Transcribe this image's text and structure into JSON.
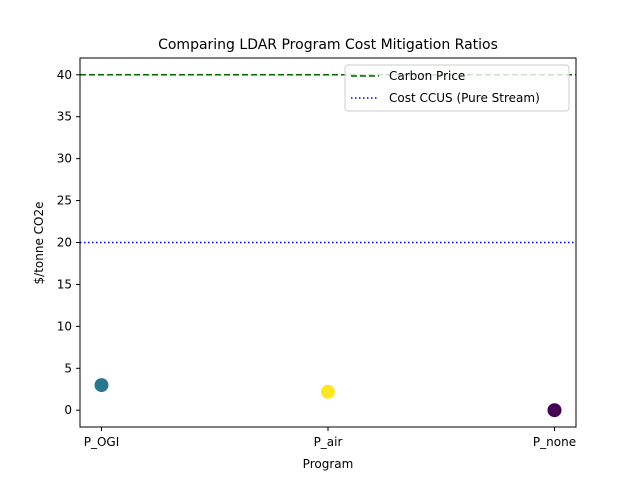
{
  "chart_data": {
    "type": "scatter",
    "title": "Comparing LDAR Program Cost Mitigation Ratios",
    "xlabel": "Program",
    "ylabel": "$/tonne CO2e",
    "categories": [
      "P_OGI",
      "P_air",
      "P_none"
    ],
    "values": [
      3.0,
      2.2,
      0.0
    ],
    "point_colors": [
      "#2a788e",
      "#fde725",
      "#440154"
    ],
    "ylim": [
      -2.0,
      42.0
    ],
    "yticks": [
      0,
      5,
      10,
      15,
      20,
      25,
      30,
      35,
      40
    ],
    "grid": false,
    "reference_lines": [
      {
        "name": "Carbon Price",
        "value": 40,
        "color": "#006400",
        "style": "dashed"
      },
      {
        "name": "Cost CCUS (Pure Stream)",
        "value": 20,
        "color": "#0000ff",
        "style": "dotted"
      }
    ],
    "legend": {
      "placement": "top-right",
      "entries": [
        "Carbon Price",
        "Cost CCUS (Pure Stream)"
      ]
    }
  }
}
